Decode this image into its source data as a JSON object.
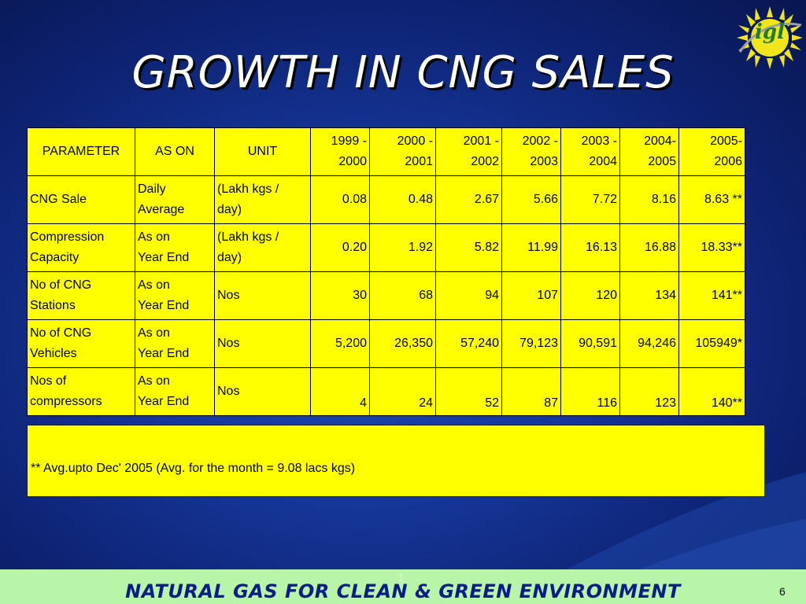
{
  "slide": {
    "title": "GROWTH IN CNG SALES",
    "logo_text": "igl",
    "footer_text": "NATURAL GAS FOR CLEAN & GREEN ENVIRONMENT",
    "footer_mark": "1",
    "page_number": "6",
    "colors": {
      "background": "#16379a",
      "table_fill": "#ffff00",
      "footer_band": "#b8f5a8",
      "footer_text": "#0a1c8a",
      "logo": "#1e7d2c"
    }
  },
  "table": {
    "headers": {
      "parameter": "PARAMETER",
      "as_on": "AS ON",
      "unit": "UNIT",
      "years": [
        [
          "1999 -",
          "2000"
        ],
        [
          "2000 -",
          "2001"
        ],
        [
          "2001 -",
          "2002"
        ],
        [
          "2002 -",
          "2003"
        ],
        [
          "2003 -",
          "2004"
        ],
        [
          "2004-",
          "2005"
        ],
        [
          "2005-",
          "2006"
        ]
      ]
    },
    "rows": [
      {
        "parameter": [
          "CNG Sale"
        ],
        "as_on": [
          "Daily",
          "Average"
        ],
        "unit": [
          "(Lakh kgs /",
          "day)"
        ],
        "values": [
          "0.08",
          "0.48",
          "2.67",
          "5.66",
          "7.72",
          "8.16",
          "8.63 **"
        ]
      },
      {
        "parameter": [
          "Compression",
          "Capacity"
        ],
        "as_on": [
          "As on",
          "Year End"
        ],
        "unit": [
          "(Lakh kgs /",
          "day)"
        ],
        "values": [
          "0.20",
          "1.92",
          "5.82",
          "11.99",
          "16.13",
          "16.88",
          "18.33**"
        ]
      },
      {
        "parameter": [
          "No of CNG",
          "Stations"
        ],
        "as_on": [
          "As on",
          "Year End"
        ],
        "unit": [
          "Nos"
        ],
        "values": [
          "30",
          "68",
          "94",
          "107",
          "120",
          "134",
          "141**"
        ]
      },
      {
        "parameter": [
          "No of CNG",
          "Vehicles"
        ],
        "as_on": [
          "As on",
          "Year End"
        ],
        "unit": [
          "Nos"
        ],
        "values": [
          "5,200",
          "26,350",
          "57,240",
          "79,123",
          "90,591",
          "94,246",
          "105949*"
        ]
      },
      {
        "parameter": [
          "Nos of",
          "compressors"
        ],
        "as_on": [
          "As on",
          "Year End"
        ],
        "unit": [
          "Nos"
        ],
        "values": [
          "4",
          "24",
          "52",
          "87",
          "116",
          "123",
          "140**"
        ]
      }
    ],
    "footnote": "** Avg.upto Dec' 2005 (Avg. for the month = 9.08 lacs kgs)"
  }
}
